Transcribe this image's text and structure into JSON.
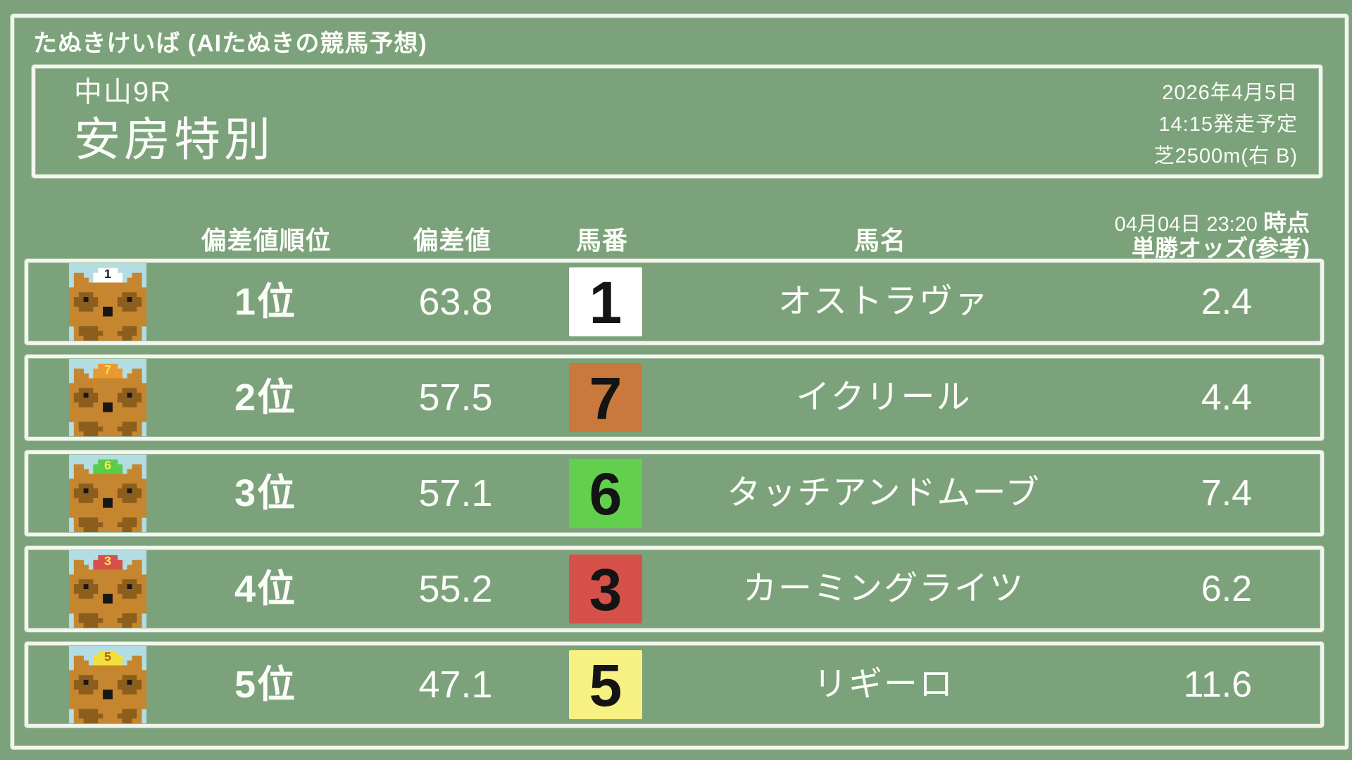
{
  "app": {
    "title": "たぬきけいば (AIたぬきの競馬予想)"
  },
  "race": {
    "course": "中山9R",
    "name": "安房特別",
    "date": "2026年4月5日",
    "start_time": "14:15発走予定",
    "track": "芝2500m(右 B)"
  },
  "table": {
    "headers": {
      "rank": "偏差値順位",
      "score": "偏差値",
      "number": "馬番",
      "horse": "馬名",
      "odds_time": "04月04日 23:20",
      "odds_time_suffix": "時点",
      "odds_label": "単勝オッズ(参考)"
    },
    "rows": [
      {
        "rank": "1位",
        "score": "63.8",
        "number": "1",
        "number_bg": "#FFFFFF",
        "number_fg": "#141414",
        "horse": "オストラヴァ",
        "odds": "2.4",
        "cap_bg": "#FFFFFF",
        "cap_fg": "#222222"
      },
      {
        "rank": "2位",
        "score": "57.5",
        "number": "7",
        "number_bg": "#C8793B",
        "number_fg": "#141414",
        "horse": "イクリール",
        "odds": "4.4",
        "cap_bg": "#E9992F",
        "cap_fg": "#FFE14D"
      },
      {
        "rank": "3位",
        "score": "57.1",
        "number": "6",
        "number_bg": "#62D04E",
        "number_fg": "#141414",
        "horse": "タッチアンドムーブ",
        "odds": "7.4",
        "cap_bg": "#5ACC49",
        "cap_fg": "#FFE95A"
      },
      {
        "rank": "4位",
        "score": "55.2",
        "number": "3",
        "number_bg": "#D7514B",
        "number_fg": "#141414",
        "horse": "カーミングライツ",
        "odds": "6.2",
        "cap_bg": "#D7514B",
        "cap_fg": "#FFE95A"
      },
      {
        "rank": "5位",
        "score": "47.1",
        "number": "5",
        "number_bg": "#F7F183",
        "number_fg": "#141414",
        "horse": "リギーロ",
        "odds": "11.6",
        "cap_bg": "#F2DF3D",
        "cap_fg": "#A86410"
      }
    ]
  },
  "colors": {
    "background": "#7CA27B",
    "border": "#F3F6EE",
    "text": "#FBFDF8",
    "avatar_bg": "#B2DDE3",
    "avatar_body": "#C6862F",
    "avatar_shade": "#8C5E1D",
    "avatar_dark": "#171717"
  }
}
